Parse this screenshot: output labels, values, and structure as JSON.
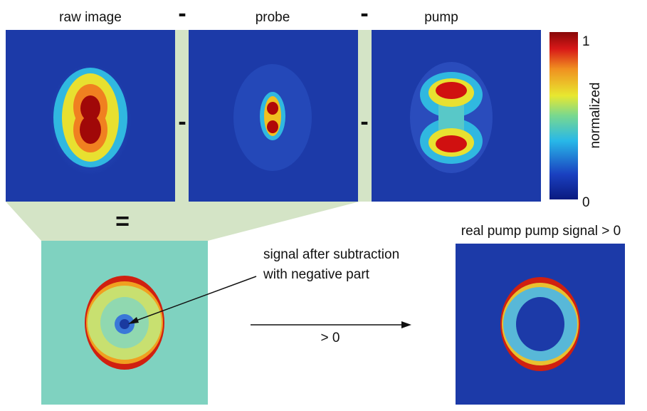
{
  "panels": {
    "raw": {
      "label": "raw image"
    },
    "probe": {
      "label": "probe"
    },
    "pump": {
      "label": "pump"
    }
  },
  "operators": {
    "top_minus_1": "-",
    "top_minus_2": "-",
    "mid_minus_1": "-",
    "mid_minus_2": "-",
    "equals": "="
  },
  "colorbar": {
    "label": "normalized",
    "max": 1,
    "min": 0
  },
  "result": {
    "title": "real pump pump signal > 0",
    "annotation_line1": "signal after subtraction",
    "annotation_line2": "with negative part",
    "arrow_label": "> 0"
  }
}
